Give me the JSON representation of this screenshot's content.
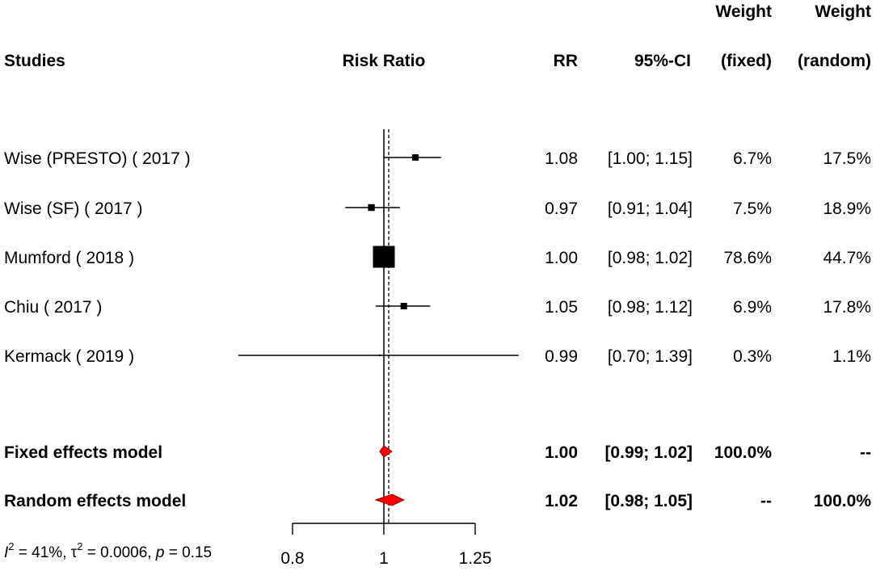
{
  "chart_data": {
    "type": "forest",
    "measure": "Risk Ratio",
    "headers": {
      "studies": "Studies",
      "risk_ratio": "Risk Ratio",
      "rr": "RR",
      "ci": "95%-CI",
      "weight_fixed_top": "Weight",
      "weight_fixed_bottom": "(fixed)",
      "weight_random_top": "Weight",
      "weight_random_bottom": "(random)"
    },
    "studies": [
      {
        "label": "Wise (PRESTO)  ( 2017 )",
        "rr": 1.08,
        "lower": 1.0,
        "upper": 1.15,
        "rr_text": "1.08",
        "ci_text": "[1.00; 1.15]",
        "w_fixed": "6.7%",
        "w_random": "17.5%",
        "weight_value": 6.7
      },
      {
        "label": "Wise (SF)  ( 2017 )",
        "rr": 0.97,
        "lower": 0.91,
        "upper": 1.04,
        "rr_text": "0.97",
        "ci_text": "[0.91; 1.04]",
        "w_fixed": "7.5%",
        "w_random": "18.9%",
        "weight_value": 7.5
      },
      {
        "label": "Mumford  ( 2018 )",
        "rr": 1.0,
        "lower": 0.98,
        "upper": 1.02,
        "rr_text": "1.00",
        "ci_text": "[0.98; 1.02]",
        "w_fixed": "78.6%",
        "w_random": "44.7%",
        "weight_value": 78.6
      },
      {
        "label": "Chiu  ( 2017 )",
        "rr": 1.05,
        "lower": 0.98,
        "upper": 1.12,
        "rr_text": "1.05",
        "ci_text": "[0.98; 1.12]",
        "w_fixed": "6.9%",
        "w_random": "17.8%",
        "weight_value": 6.9
      },
      {
        "label": "Kermack  ( 2019 )",
        "rr": 0.99,
        "lower": 0.7,
        "upper": 1.39,
        "rr_text": "0.99",
        "ci_text": "[0.70; 1.39]",
        "w_fixed": "0.3%",
        "w_random": "1.1%",
        "weight_value": 0.3
      }
    ],
    "models": [
      {
        "label": "Fixed effects model",
        "rr": 1.0,
        "lower": 0.99,
        "upper": 1.02,
        "rr_text": "1.00",
        "ci_text": "[0.99; 1.02]",
        "w_fixed": "100.0%",
        "w_random": "--"
      },
      {
        "label": "Random effects model",
        "rr": 1.02,
        "lower": 0.98,
        "upper": 1.05,
        "rr_text": "1.02",
        "ci_text": "[0.98; 1.05]",
        "w_fixed": "--",
        "w_random": "100.0%"
      }
    ],
    "heterogeneity": {
      "i2": "41%",
      "tau2": "0.0006",
      "p": "0.15"
    },
    "x_axis": {
      "scale": "log",
      "xlim": [
        0.8,
        1.25
      ],
      "ticks": [
        0.8,
        1,
        1.25
      ],
      "tick_labels": [
        "0.8",
        "1",
        "1.25"
      ]
    },
    "null_line": 1,
    "colors": {
      "diamond": "#ff0000",
      "ink": "#000000"
    }
  }
}
